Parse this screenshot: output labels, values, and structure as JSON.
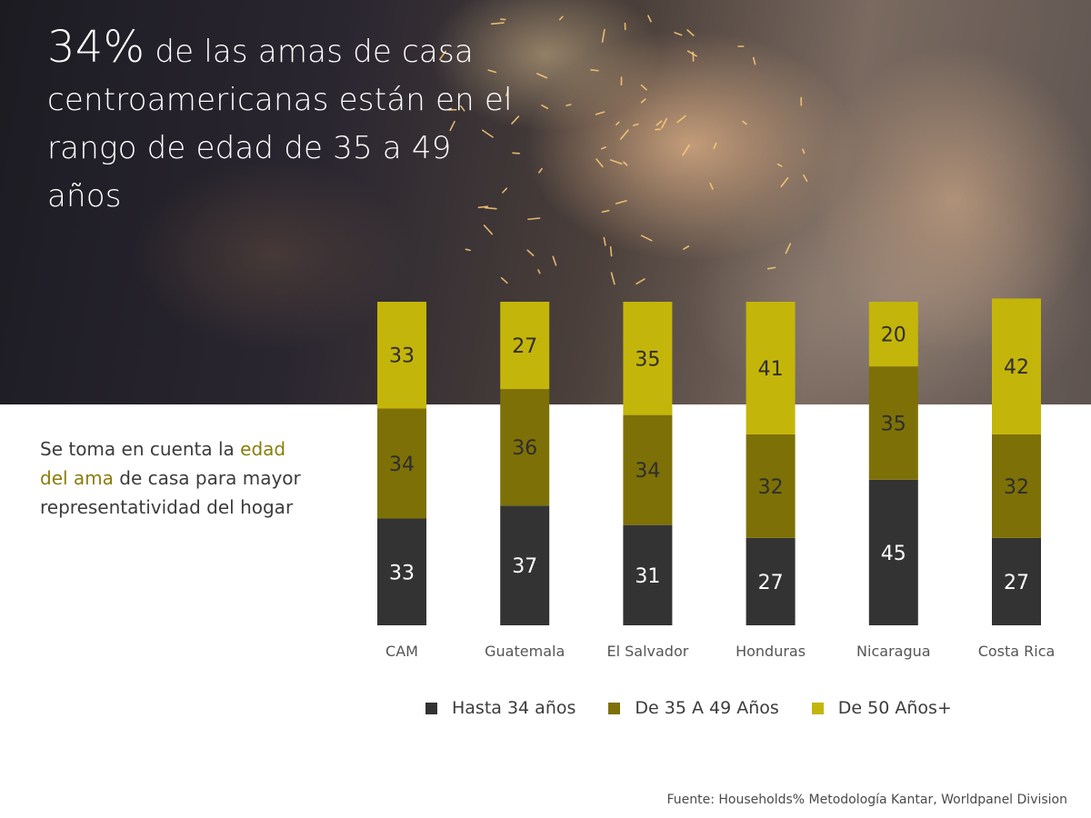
{
  "headline": {
    "pct": "34%",
    "rest": "de las amas de casa centroamericanas están en el rango de edad de 35 a 49 años"
  },
  "side_note": {
    "before": "Se toma en cuenta la",
    "highlight": "edad del ama",
    "after": "de casa para mayor representatividad del hogar"
  },
  "source": "Fuente: Households% Metodología Kantar, Worldpanel Division",
  "colors": {
    "hasta_34": "#333333",
    "de_35_49": "#7d7006",
    "de_50": "#c4b50a",
    "label_on_dark": "#ffffff",
    "label_on_bar": "#2e2e2e"
  },
  "chart_data": {
    "type": "bar",
    "stacked": true,
    "normalized_to": 100,
    "categories": [
      "CAM",
      "Guatemala",
      "El Salvador",
      "Honduras",
      "Nicaragua",
      "Costa Rica"
    ],
    "series": [
      {
        "name": "Hasta 34 años",
        "values": [
          33,
          37,
          31,
          27,
          45,
          27
        ]
      },
      {
        "name": "De 35 A 49 Años",
        "values": [
          34,
          36,
          34,
          32,
          35,
          32
        ]
      },
      {
        "name": "De 50 Años+",
        "values": [
          33,
          27,
          35,
          41,
          20,
          42
        ]
      }
    ],
    "data_labels": true,
    "legend_position": "bottom"
  }
}
